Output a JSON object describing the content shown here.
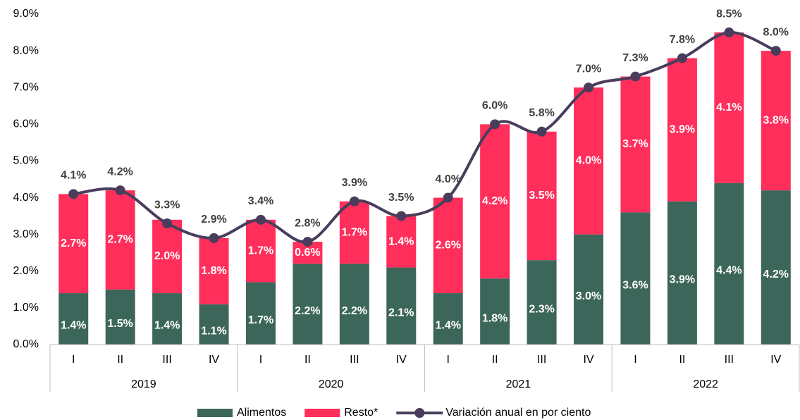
{
  "chart_data": {
    "type": "bar+line",
    "categories": [
      "I",
      "II",
      "III",
      "IV",
      "I",
      "II",
      "III",
      "IV",
      "I",
      "II",
      "III",
      "IV",
      "I",
      "II",
      "III",
      "IV"
    ],
    "years": [
      "2019",
      "2020",
      "2021",
      "2022"
    ],
    "series": [
      {
        "name": "Alimentos",
        "type": "bar",
        "color": "#3d665a",
        "values": [
          1.4,
          1.5,
          1.4,
          1.1,
          1.7,
          2.2,
          2.2,
          2.1,
          1.4,
          1.8,
          2.3,
          3.0,
          3.6,
          3.9,
          4.4,
          4.2
        ],
        "value_labels": [
          "1.4%",
          "1.5%",
          "1.4%",
          "1.1%",
          "1.7%",
          "2.2%",
          "2.2%",
          "2.1%",
          "1.4%",
          "1.8%",
          "2.3%",
          "3.0%",
          "3.6%",
          "3.9%",
          "4.4%",
          "4.2%"
        ]
      },
      {
        "name": "Resto*",
        "type": "bar",
        "color": "#ff2e5b",
        "values": [
          2.7,
          2.7,
          2.0,
          1.8,
          1.7,
          0.6,
          1.7,
          1.4,
          2.6,
          4.2,
          3.5,
          4.0,
          3.7,
          3.9,
          4.1,
          3.8
        ],
        "value_labels": [
          "2.7%",
          "2.7%",
          "2.0%",
          "1.8%",
          "1.7%",
          "0.6%",
          "1.7%",
          "1.4%",
          "2.6%",
          "4.2%",
          "3.5%",
          "4.0%",
          "3.7%",
          "3.9%",
          "4.1%",
          "3.8%"
        ]
      },
      {
        "name": "Variación anual en por ciento",
        "type": "line",
        "color": "#4a3d5c",
        "values": [
          4.1,
          4.2,
          3.3,
          2.9,
          3.4,
          2.8,
          3.9,
          3.5,
          4.0,
          6.0,
          5.8,
          7.0,
          7.3,
          7.8,
          8.5,
          8.0
        ],
        "value_labels": [
          "4.1%",
          "4.2%",
          "3.3%",
          "2.9%",
          "3.4%",
          "2.8%",
          "3.9%",
          "3.5%",
          "4.0%",
          "6.0%",
          "5.8%",
          "7.0%",
          "7.3%",
          "7.8%",
          "8.5%",
          "8.0%"
        ]
      }
    ],
    "ylim": [
      0,
      9
    ],
    "yticks": [
      {
        "value": 0,
        "label": "0.0%"
      },
      {
        "value": 1,
        "label": "1.0%"
      },
      {
        "value": 2,
        "label": "2.0%"
      },
      {
        "value": 3,
        "label": "3.0%"
      },
      {
        "value": 4,
        "label": "4.0%"
      },
      {
        "value": 5,
        "label": "5.0%"
      },
      {
        "value": 6,
        "label": "6.0%"
      },
      {
        "value": 7,
        "label": "7.0%"
      },
      {
        "value": 8,
        "label": "8.0%"
      },
      {
        "value": 9,
        "label": "9.0%"
      }
    ],
    "grid": false,
    "legend": "bottom"
  }
}
